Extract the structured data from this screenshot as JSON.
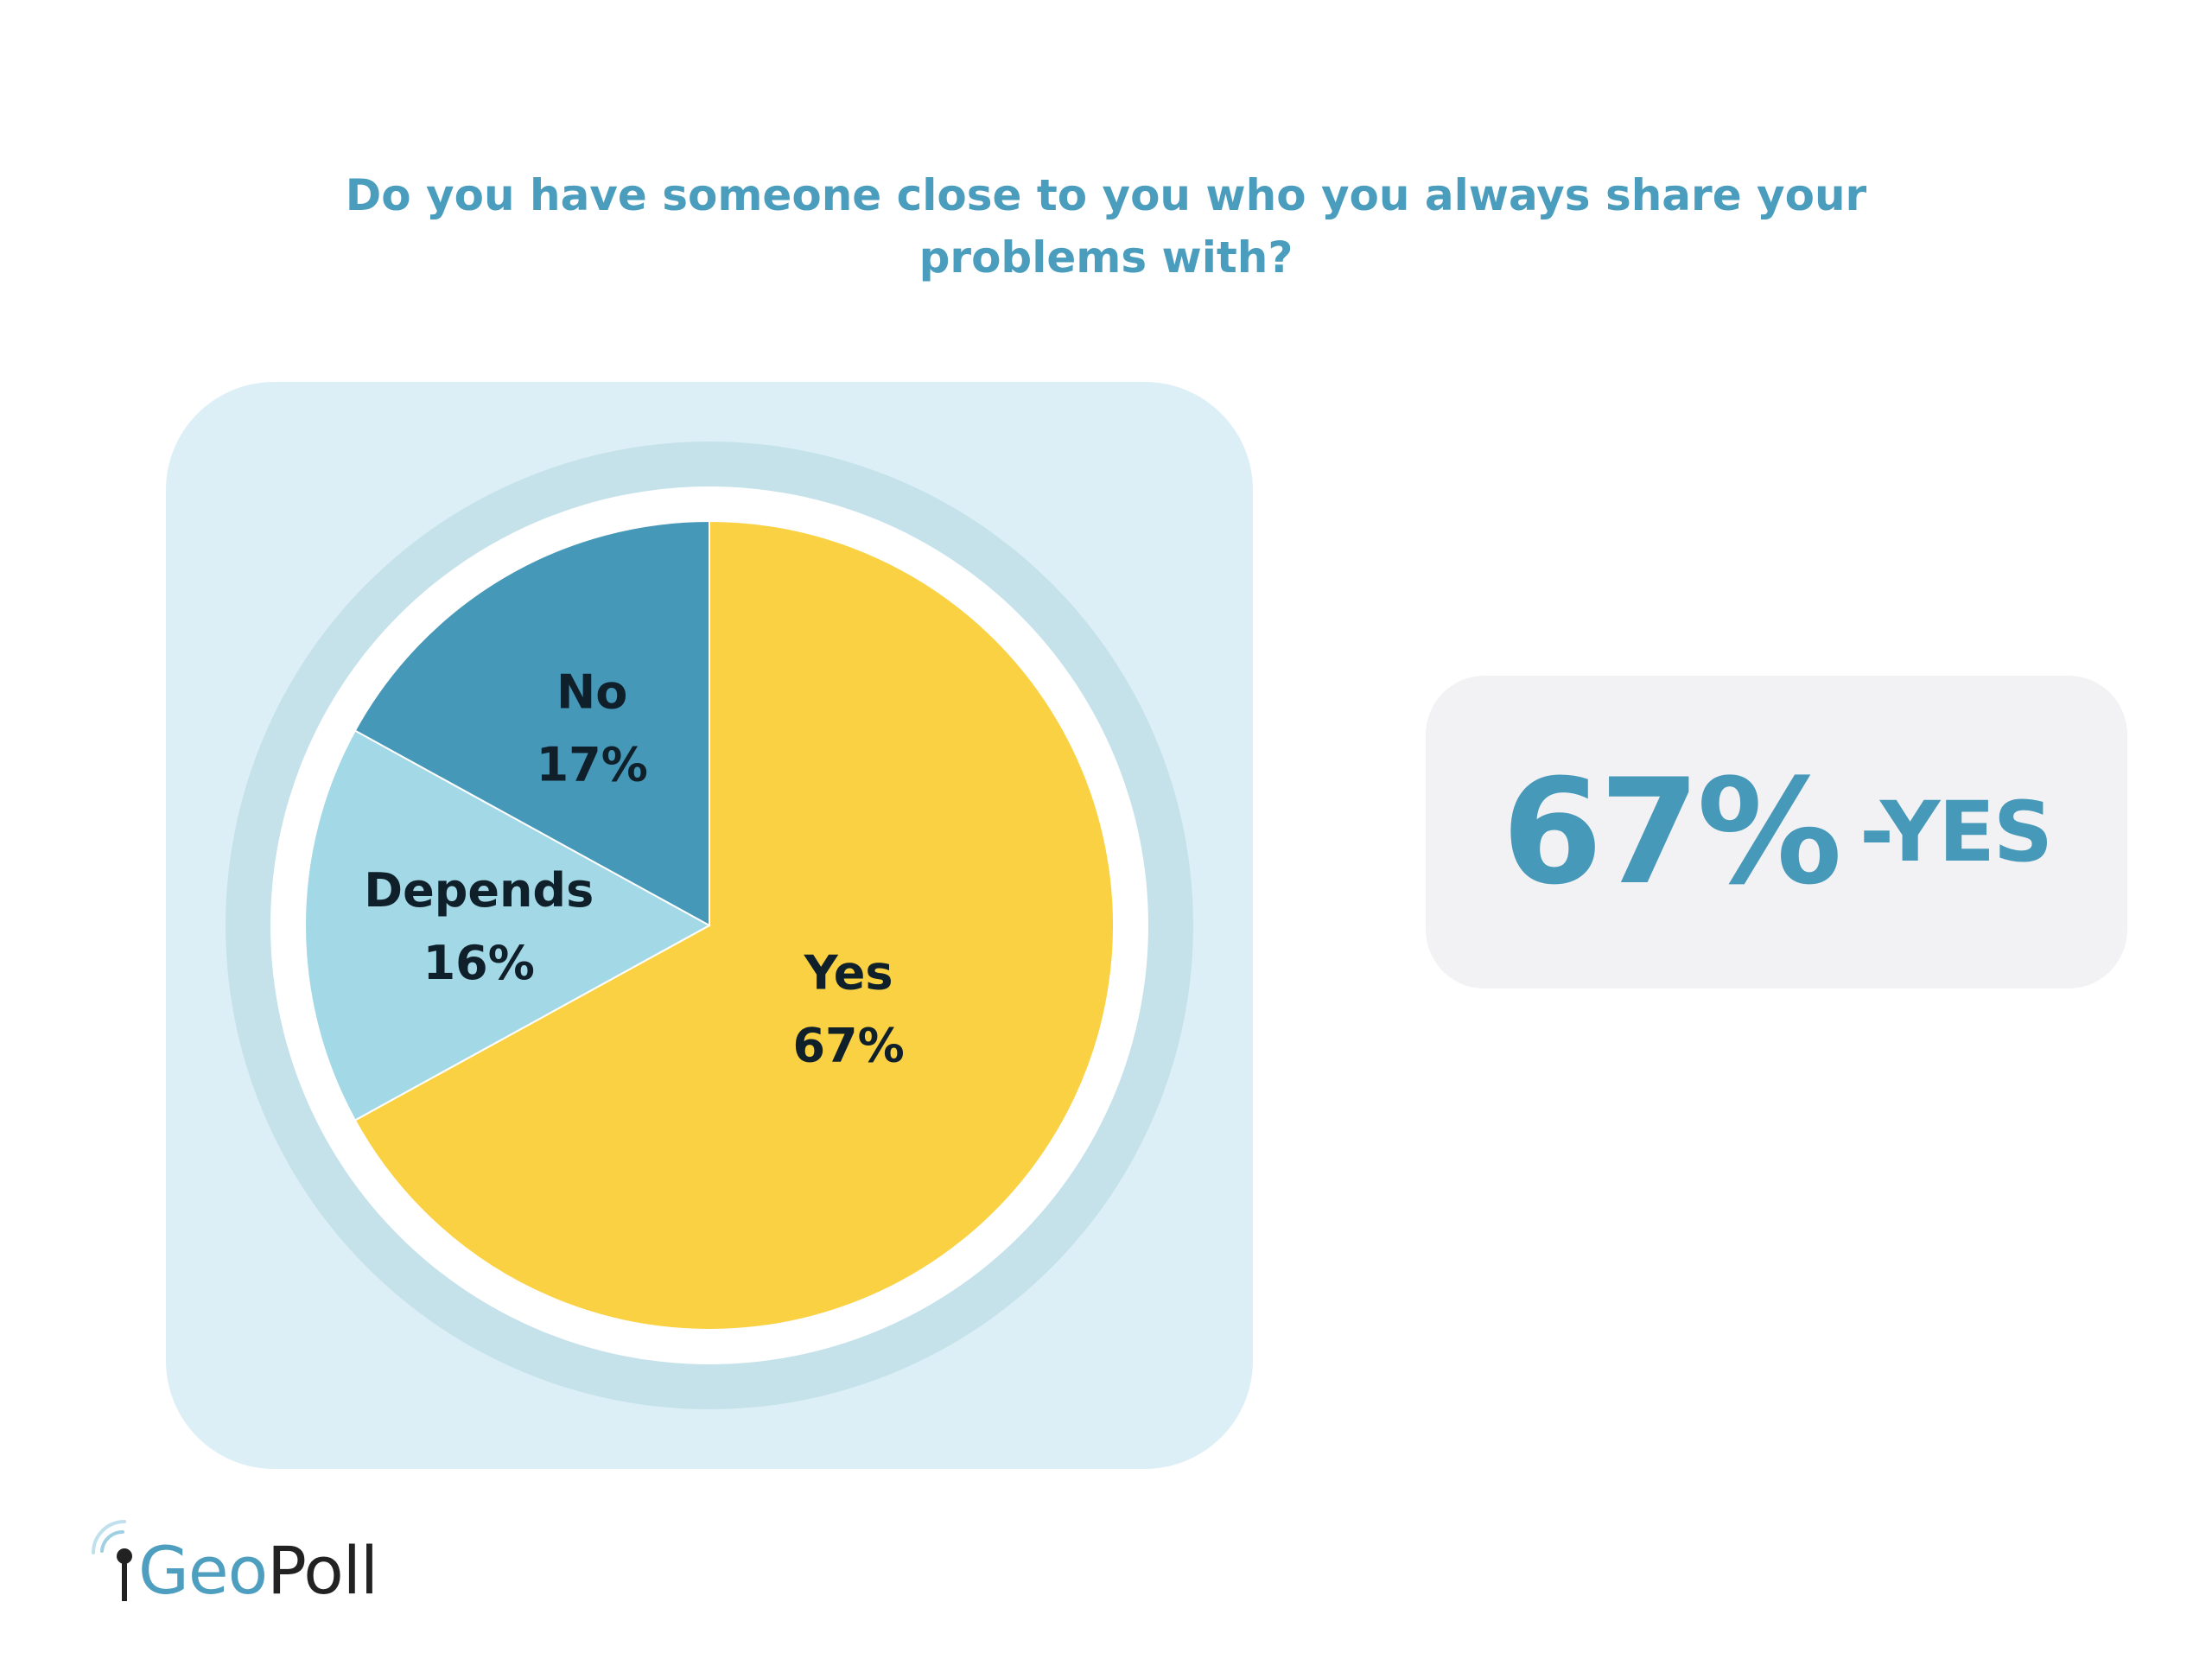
{
  "title": "Do you have someone close to you who you always share your problems with?",
  "chart_data": {
    "type": "pie",
    "title": "Do you have someone close to you who you always share your problems with?",
    "slices": [
      {
        "label": "Yes",
        "value": 67,
        "display": "67%",
        "color": "#f9d142"
      },
      {
        "label": "Depends",
        "value": 16,
        "display": "16%",
        "color": "#a3d8e6"
      },
      {
        "label": "No",
        "value": 17,
        "display": "17%",
        "color": "#4698b8"
      }
    ],
    "start_angle_deg": 0,
    "direction": "clockwise",
    "colors": {
      "panel": "#ddeff6",
      "outer_ring": "#c5e2eb",
      "separator": "#ffffff"
    }
  },
  "highlight": {
    "value": "67%",
    "suffix": "-YES"
  },
  "logo": {
    "part1": "Geo",
    "part2": "Poll",
    "icon": "signal-pin-icon"
  }
}
